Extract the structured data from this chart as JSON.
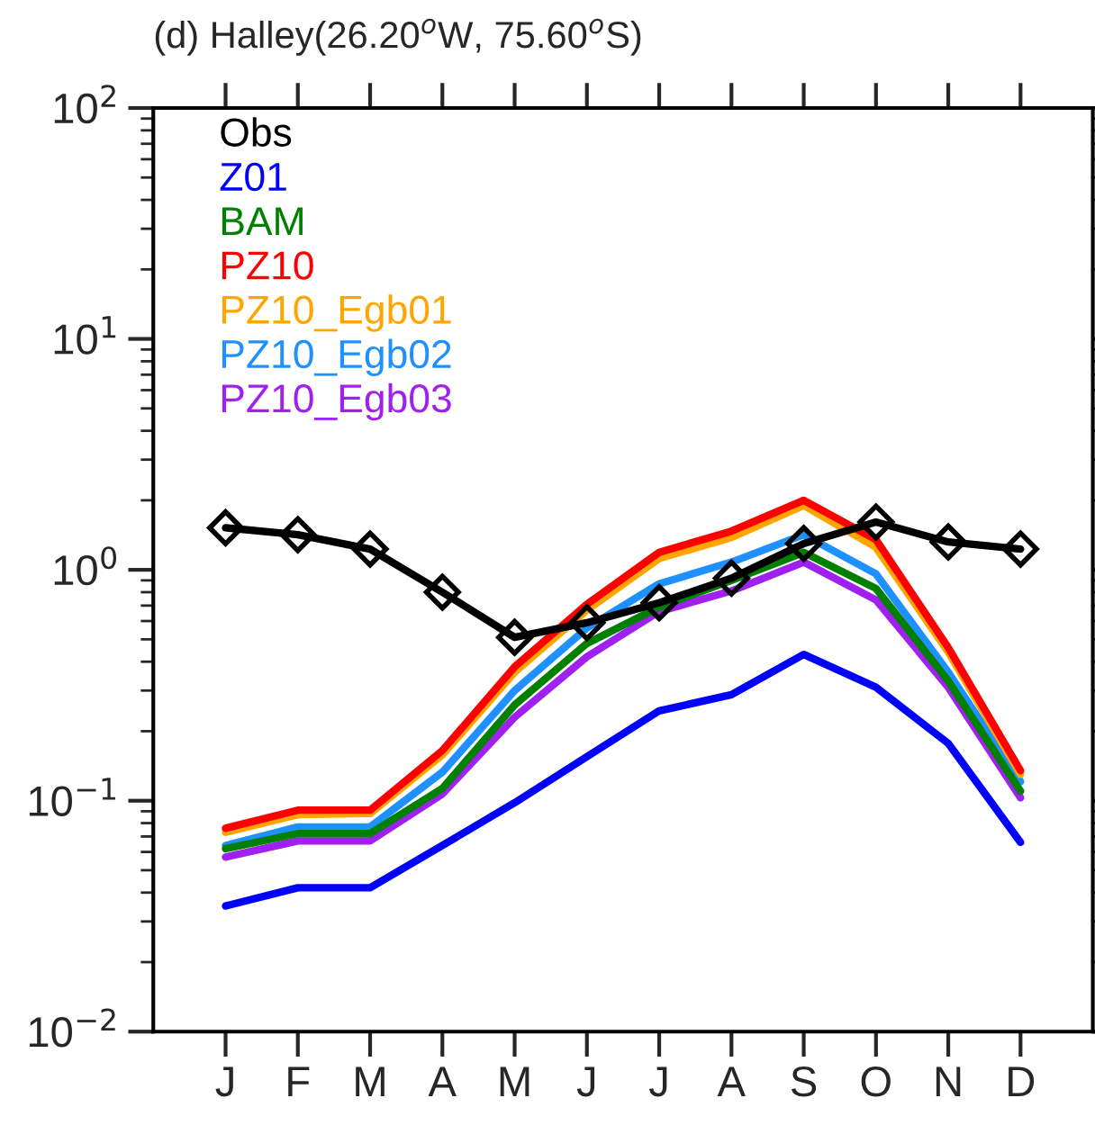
{
  "chart_data": {
    "type": "line",
    "title": "(d) Halley(26.20$^{o}$W, 75.60$^{o}$S)",
    "categories": [
      "J",
      "F",
      "M",
      "A",
      "M",
      "J",
      "J",
      "A",
      "S",
      "O",
      "N",
      "D"
    ],
    "series": [
      {
        "name": "Obs",
        "color": "#000000",
        "marker": "diamond",
        "values": [
          1.52,
          1.42,
          1.23,
          0.8,
          0.51,
          0.59,
          0.72,
          0.92,
          1.3,
          1.61,
          1.32,
          1.23
        ]
      },
      {
        "name": "Z01",
        "color": "#0000ff",
        "values": [
          0.035,
          0.042,
          0.042,
          0.064,
          0.098,
          0.155,
          0.245,
          0.288,
          0.43,
          0.31,
          0.177,
          0.066
        ]
      },
      {
        "name": "BAM",
        "color": "#008000",
        "values": [
          0.062,
          0.072,
          0.072,
          0.113,
          0.26,
          0.48,
          0.69,
          0.9,
          1.19,
          0.83,
          0.33,
          0.11
        ]
      },
      {
        "name": "PZ10",
        "color": "#ff0000",
        "values": [
          0.076,
          0.091,
          0.091,
          0.165,
          0.38,
          0.71,
          1.19,
          1.47,
          2.0,
          1.35,
          0.46,
          0.135
        ]
      },
      {
        "name": "PZ10_Egb01",
        "color": "#ffa500",
        "values": [
          0.073,
          0.087,
          0.088,
          0.158,
          0.36,
          0.67,
          1.12,
          1.38,
          1.9,
          1.25,
          0.44,
          0.13
        ]
      },
      {
        "name": "PZ10_Egb02",
        "color": "#1e90ff",
        "values": [
          0.064,
          0.077,
          0.077,
          0.133,
          0.3,
          0.56,
          0.87,
          1.08,
          1.42,
          0.96,
          0.36,
          0.121
        ]
      },
      {
        "name": "PZ10_Egb03",
        "color": "#a020f0",
        "values": [
          0.057,
          0.067,
          0.067,
          0.107,
          0.23,
          0.42,
          0.66,
          0.81,
          1.08,
          0.74,
          0.31,
          0.103
        ]
      }
    ],
    "log": "y",
    "ylim": [
      0.01,
      100
    ],
    "yticks": [
      {
        "value": 0.01,
        "label": "10$^{−2}$"
      },
      {
        "value": 0.1,
        "label": "10$^{−1}$"
      },
      {
        "value": 1,
        "label": "10$^{0}$"
      },
      {
        "value": 10,
        "label": "10$^{1}$"
      },
      {
        "value": 100,
        "label": "10$^{2}$"
      }
    ],
    "grid": false,
    "legend": "top left",
    "line_style": "solid"
  }
}
